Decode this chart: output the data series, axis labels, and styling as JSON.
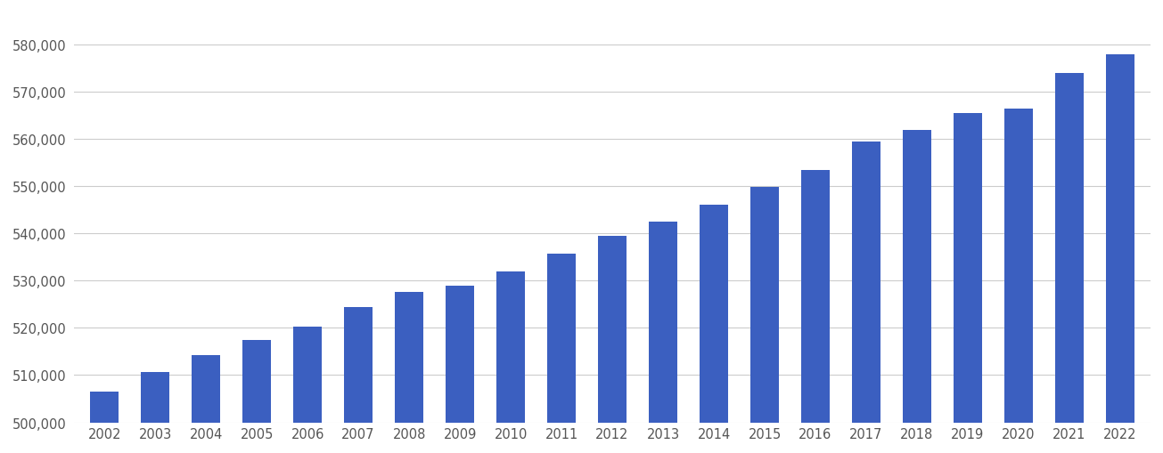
{
  "years": [
    2002,
    2003,
    2004,
    2005,
    2006,
    2007,
    2008,
    2009,
    2010,
    2011,
    2012,
    2013,
    2014,
    2015,
    2016,
    2017,
    2018,
    2019,
    2020,
    2021,
    2022
  ],
  "values": [
    506500,
    510700,
    514200,
    517500,
    520200,
    524500,
    527700,
    529000,
    532000,
    535700,
    539500,
    542500,
    546000,
    549900,
    553500,
    559500,
    562000,
    565500,
    566500,
    574000,
    578000
  ],
  "bar_color": "#3B5FC0",
  "background_color": "#ffffff",
  "grid_color": "#cccccc",
  "ylim_min": 500000,
  "ylim_max": 587000,
  "yticks": [
    500000,
    510000,
    520000,
    530000,
    540000,
    550000,
    560000,
    570000,
    580000
  ],
  "tick_color": "#555555",
  "tick_fontsize": 10.5,
  "bar_width": 0.55
}
